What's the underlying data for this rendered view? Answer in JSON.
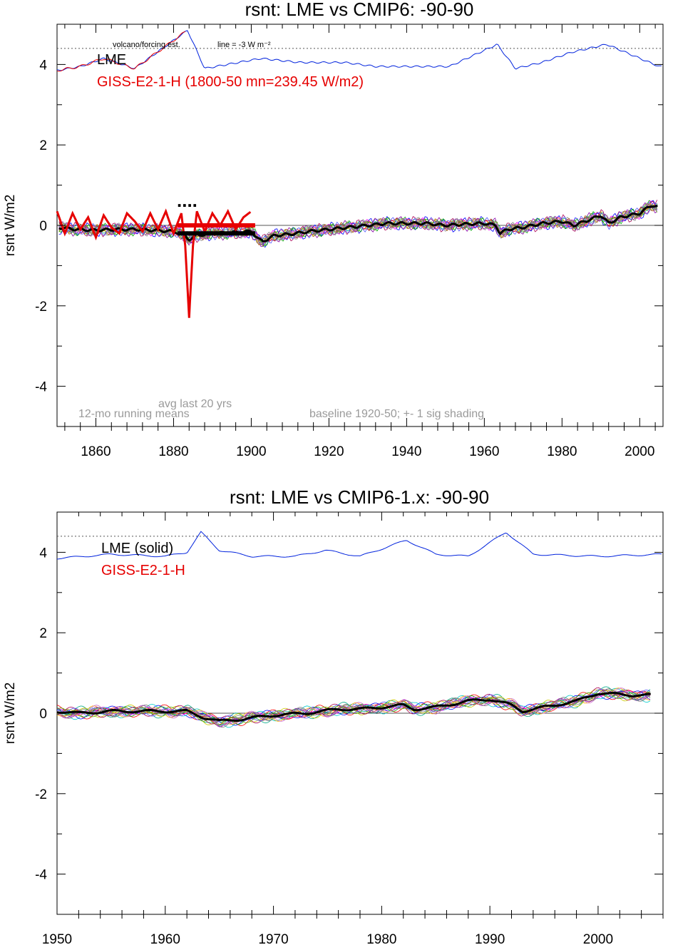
{
  "chart_data": [
    {
      "type": "line",
      "title": "rsnt: LME vs CMIP6: -90-90",
      "ylabel": "rsnt W/m2",
      "xlim": [
        1850,
        2006
      ],
      "ylim": [
        -5,
        5
      ],
      "xticks": [
        1860,
        1880,
        1900,
        1920,
        1940,
        1960,
        1980,
        2000
      ],
      "yticks": [
        -4,
        -2,
        0,
        2,
        4
      ],
      "legend": [
        "LME",
        "GISS-E2-1-H (1800-50 mn=239.45 W/m2)"
      ],
      "annotations": {
        "volcano": "volcano/forcing est.",
        "line_note": "line = -3 W m⁻²",
        "avg": "avg last 20 yrs",
        "running": "12-mo running means",
        "baseline": "baseline 1920-50; +- 1 sig shading",
        "dots": "...."
      },
      "zero_line": 0,
      "forcing_baseline": 4.4,
      "volcano_x": [
        1850,
        1856,
        1862,
        1870,
        1883.6,
        1888,
        1902.5,
        1912.5,
        1924,
        1932,
        1943,
        1951,
        1963.3,
        1968,
        1974.8,
        1982.3,
        1991.5,
        2005
      ],
      "volcano_y": [
        3.85,
        3.95,
        4.15,
        3.9,
        4.85,
        3.9,
        4.15,
        4.05,
        4.05,
        3.95,
        3.95,
        3.95,
        4.5,
        3.9,
        4.05,
        4.3,
        4.5,
        3.95
      ],
      "lme_ensemble_mean_x": [
        1850,
        1855,
        1860,
        1865,
        1870,
        1875,
        1880,
        1882,
        1884,
        1886,
        1890,
        1895,
        1900,
        1902,
        1903,
        1906,
        1910,
        1915,
        1920,
        1925,
        1930,
        1935,
        1940,
        1945,
        1950,
        1955,
        1960,
        1963,
        1964,
        1966,
        1970,
        1975,
        1980,
        1983,
        1986,
        1990,
        1992,
        1995,
        2000,
        2003,
        2005
      ],
      "lme_ensemble_mean_y": [
        -0.05,
        -0.1,
        -0.12,
        -0.1,
        -0.1,
        -0.12,
        -0.15,
        -0.2,
        -0.35,
        -0.25,
        -0.2,
        -0.18,
        -0.15,
        -0.35,
        -0.4,
        -0.25,
        -0.22,
        -0.15,
        -0.1,
        -0.05,
        0.0,
        0.05,
        0.05,
        0.05,
        0.0,
        0.03,
        0.05,
        0.0,
        -0.2,
        -0.1,
        -0.05,
        0.05,
        0.1,
        0.0,
        0.1,
        0.25,
        0.05,
        0.2,
        0.3,
        0.5,
        0.45
      ],
      "giss_x": [
        1850,
        1852,
        1854,
        1856,
        1858,
        1860,
        1862,
        1864,
        1866,
        1868,
        1870,
        1872,
        1874,
        1876,
        1878,
        1880,
        1882,
        1883,
        1884,
        1885,
        1886,
        1888,
        1890,
        1892,
        1894,
        1896,
        1898,
        1900
      ],
      "giss_y": [
        0.35,
        -0.2,
        0.3,
        -0.1,
        0.2,
        -0.3,
        0.25,
        -0.05,
        -0.2,
        0.3,
        0.1,
        -0.15,
        0.3,
        -0.1,
        0.35,
        -0.2,
        0.3,
        -0.5,
        -2.3,
        -0.5,
        0.35,
        -0.15,
        0.3,
        0.0,
        0.35,
        -0.1,
        0.2,
        0.35
      ],
      "avg_last20": {
        "lme": -0.2,
        "giss": 0.0,
        "x0": 1881,
        "x1": 1901
      }
    },
    {
      "type": "line",
      "title": "rsnt: LME vs CMIP6-1.x: -90-90",
      "ylabel": "rsnt W/m2",
      "xlim": [
        1950,
        2006
      ],
      "ylim": [
        -5,
        5
      ],
      "xticks": [
        1950,
        1960,
        1970,
        1980,
        1990,
        2000
      ],
      "yticks": [
        -4,
        -2,
        0,
        2,
        4
      ],
      "legend": [
        "LME (solid)",
        "GISS-E2-1-H"
      ],
      "zero_line": 0,
      "forcing_baseline": 4.4,
      "volcano_x": [
        1950,
        1955,
        1960,
        1962,
        1963.3,
        1965,
        1968,
        1972,
        1974.8,
        1978,
        1982.3,
        1985,
        1988,
        1991.5,
        1994,
        2000,
        2006
      ],
      "volcano_y": [
        3.85,
        3.95,
        3.9,
        4.0,
        4.5,
        4.05,
        3.9,
        3.9,
        4.05,
        3.9,
        4.3,
        3.95,
        3.9,
        4.5,
        3.95,
        3.9,
        3.95
      ],
      "lme_ensemble_mean_x": [
        1950,
        1952,
        1955,
        1958,
        1960,
        1962,
        1963.5,
        1965,
        1967,
        1970,
        1973,
        1976,
        1978,
        1980,
        1982,
        1983,
        1985,
        1988,
        1990,
        1992,
        1993,
        1995,
        1998,
        2000,
        2003,
        2005
      ],
      "lme_ensemble_mean_y": [
        0.05,
        0.0,
        0.05,
        0.05,
        0.05,
        0.05,
        -0.1,
        -0.2,
        -0.15,
        -0.05,
        0.0,
        0.1,
        0.1,
        0.15,
        0.2,
        0.1,
        0.15,
        0.3,
        0.35,
        0.2,
        0.05,
        0.15,
        0.3,
        0.5,
        0.45,
        0.45
      ]
    }
  ]
}
